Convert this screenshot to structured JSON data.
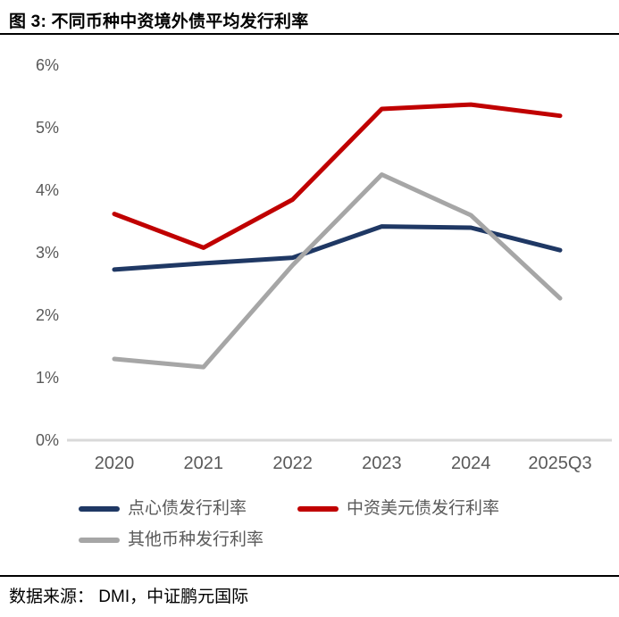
{
  "header": {
    "title": "图 3: 不同币种中资境外债平均发行利率"
  },
  "footer": {
    "source_label": "数据来源： DMI，中证鹏元国际"
  },
  "chart_data": {
    "type": "line",
    "title": "图 3: 不同币种中资境外债平均发行利率",
    "categories": [
      "2020",
      "2021",
      "2022",
      "2023",
      "2024",
      "2025Q3"
    ],
    "series": [
      {
        "name": "点心债发行利率",
        "color": "#1F3864",
        "values": [
          2.73,
          2.83,
          2.92,
          3.42,
          3.4,
          3.04
        ]
      },
      {
        "name": "中资美元债发行利率",
        "color": "#C00000",
        "values": [
          3.62,
          3.08,
          3.85,
          5.3,
          5.37,
          5.19
        ]
      },
      {
        "name": "其他币种发行利率",
        "color": "#A6A6A6",
        "values": [
          1.3,
          1.17,
          2.8,
          4.25,
          3.6,
          2.27
        ]
      }
    ],
    "ylim": [
      0,
      6
    ],
    "ytick_labels": [
      "0%",
      "1%",
      "2%",
      "3%",
      "4%",
      "5%",
      "6%"
    ],
    "xlabel": "",
    "ylabel": "",
    "grid": false,
    "legend_position": "bottom",
    "axis_line_color": "#D9D9D9",
    "tick_text_color": "#595959"
  }
}
